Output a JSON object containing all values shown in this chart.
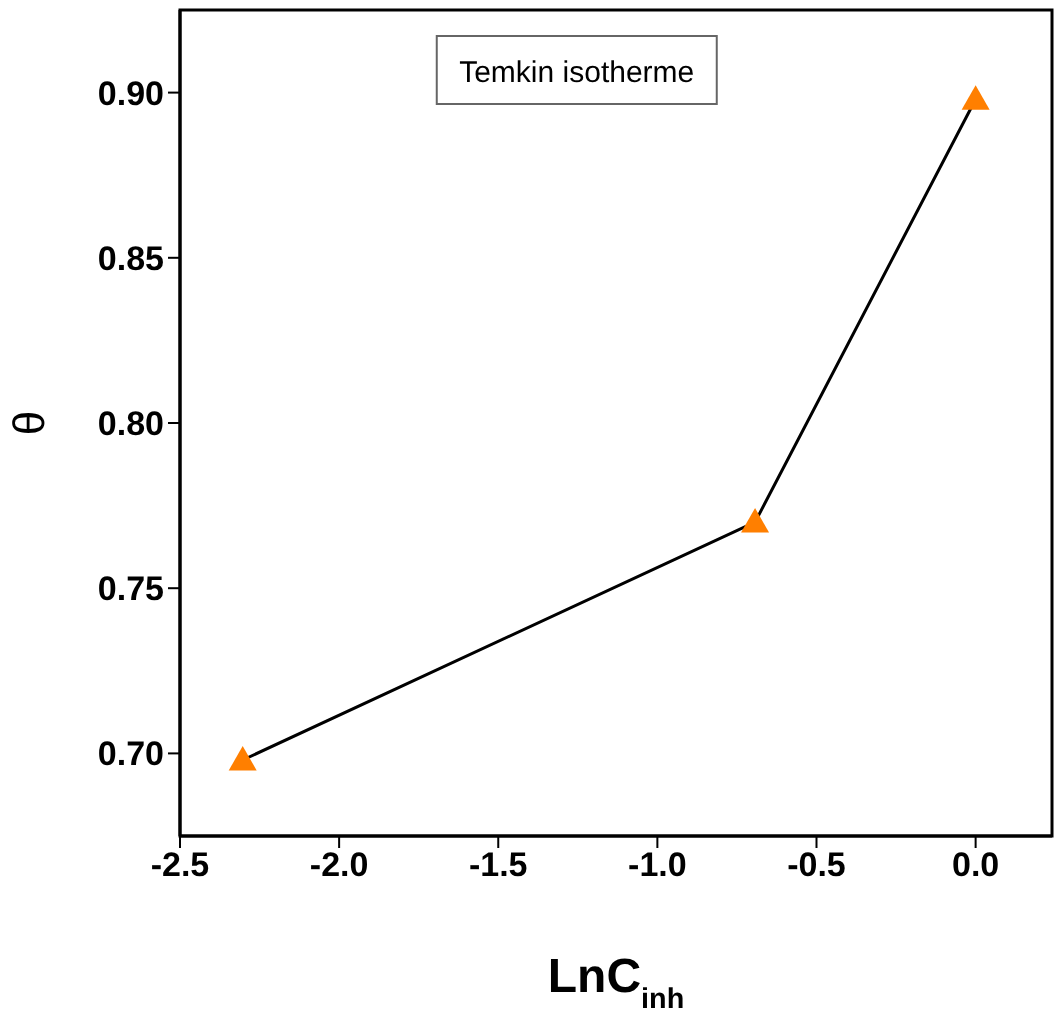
{
  "chart_data": {
    "type": "line",
    "xlabel": "LnC$_{inh}$",
    "ylabel": "θ",
    "annotations": [
      "Temkin isotherme"
    ],
    "x": [
      -2.303,
      -0.693,
      0.0
    ],
    "series": [
      {
        "type": "line",
        "color": "#000000",
        "marker": "none",
        "values": [
          0.698,
          0.77,
          0.898
        ]
      },
      {
        "type": "scatter",
        "color": "#ff7f00",
        "marker": "triangle",
        "values": [
          0.698,
          0.77,
          0.898
        ]
      }
    ],
    "xlim": [
      -2.5,
      0.24
    ],
    "xticks": [
      {
        "value": -2.5,
        "label": "-2.5"
      },
      {
        "value": -2.0,
        "label": "-2.0"
      },
      {
        "value": -1.5,
        "label": "-1.5"
      },
      {
        "value": -1.0,
        "label": "-1.0"
      },
      {
        "value": -0.5,
        "label": "-0.5"
      },
      {
        "value": 0,
        "label": "0.0"
      }
    ],
    "ylim": [
      0.675,
      0.925
    ],
    "yticks": [
      {
        "value": 0.7,
        "label": "0.70"
      },
      {
        "value": 0.75,
        "label": "0.75"
      },
      {
        "value": 0.8,
        "label": "0.80"
      },
      {
        "value": 0.85,
        "label": "0.85"
      },
      {
        "value": 0.9,
        "label": "0.90"
      }
    ],
    "grid": false
  }
}
